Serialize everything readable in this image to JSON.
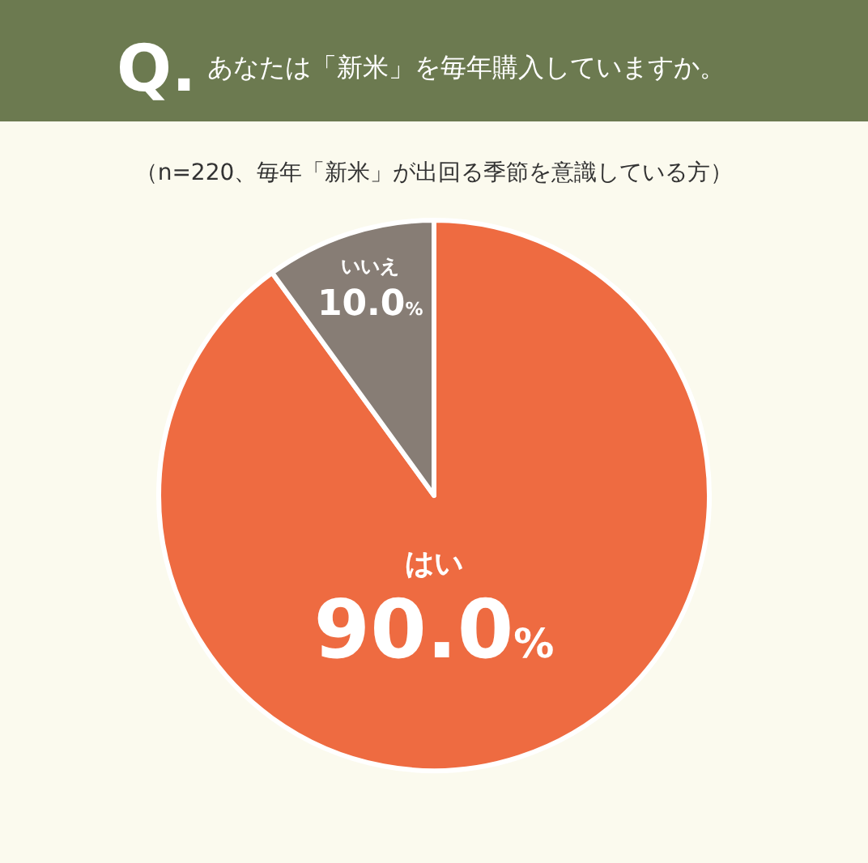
{
  "chart_data": {
    "type": "pie",
    "title": "あなたは「新米」を毎年購入していますか。",
    "subtitle": "（n=220、毎年「新米」が出回る季節を意識している方）",
    "annotations": [
      "Q."
    ],
    "categories": [
      "はい",
      "いいえ"
    ],
    "values": [
      90,
      10
    ],
    "colors": [
      "#ee6b41",
      "#877d75"
    ],
    "value_labels": [
      "90.0%",
      "10.0%"
    ]
  }
}
